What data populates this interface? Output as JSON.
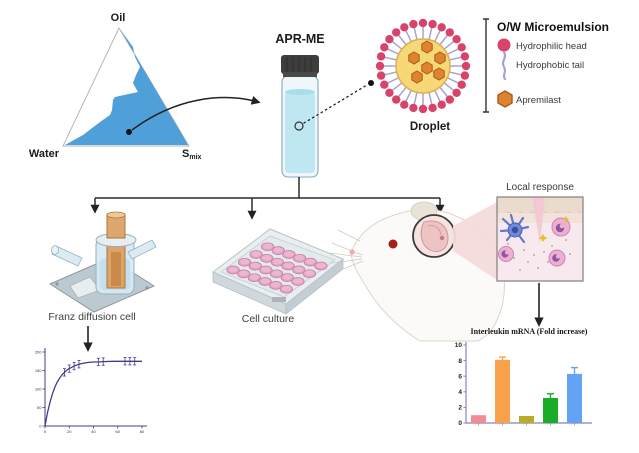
{
  "ternary": {
    "oil": "Oil",
    "water": "Water",
    "smix_base": "S",
    "smix_sub": "mix"
  },
  "vial": {
    "label": "APR-ME"
  },
  "droplet": {
    "label": "Droplet"
  },
  "legend": {
    "title": "O/W Microemulsion",
    "items": [
      {
        "icon": "hydrophilic-head-icon",
        "label": "Hydrophilic head"
      },
      {
        "icon": "hydrophobic-tail-icon",
        "label": "Hydrophobic tail"
      },
      {
        "icon": "apremilast-hexagon-icon",
        "label": "Apremilast"
      }
    ]
  },
  "assays": {
    "franz_label": "Franz diffusion cell",
    "cell_culture_label": "Cell culture",
    "local_response_label": "Local response"
  },
  "colors": {
    "ternary_region": "#4f9fd8",
    "head": "#d8436a",
    "tail": "#a3a3da",
    "apremilast": "#e0832f",
    "apremilast_stroke": "#a85c17",
    "droplet_core": "#f6d878",
    "droplet_core_stroke": "#e0ae4e",
    "vial_liquid": "#bfe7f2",
    "beam": "#f4dadb",
    "axis_purple": "#8585c2"
  },
  "chart_data": [
    {
      "type": "line",
      "title": "",
      "x": [
        0,
        2,
        4,
        6,
        8,
        10,
        12,
        14,
        16,
        18,
        20,
        24,
        28,
        32,
        36,
        40,
        44,
        48,
        56,
        64,
        72,
        80
      ],
      "y": [
        0,
        35,
        63,
        86,
        104,
        118,
        129,
        138,
        145,
        151,
        155,
        162,
        167,
        170,
        172,
        173,
        173,
        174,
        175,
        175,
        175,
        175
      ],
      "error_points": [
        [
          16,
          145
        ],
        [
          20,
          155
        ],
        [
          24,
          162
        ],
        [
          28,
          167
        ],
        [
          44,
          173
        ],
        [
          48,
          174
        ],
        [
          66,
          175
        ],
        [
          70,
          175
        ],
        [
          74,
          175
        ]
      ],
      "yerr": 10,
      "xlim": [
        0,
        80
      ],
      "ylim": [
        0,
        200
      ],
      "xticks": [
        0,
        20,
        40,
        60,
        80
      ],
      "yticks": [
        0,
        50,
        100,
        150,
        200
      ],
      "line_color": "#4a3a85",
      "grid": false,
      "legend_position": "none"
    },
    {
      "type": "bar",
      "title": "Interleukin mRNA (Fold increase)",
      "categories": [
        "",
        "",
        "",
        "",
        ""
      ],
      "values": [
        1.0,
        8.1,
        0.9,
        3.2,
        6.3
      ],
      "errors": [
        0,
        0.35,
        0,
        0.55,
        0.8
      ],
      "bar_colors": [
        "#f28b92",
        "#f9a24b",
        "#b8ac28",
        "#19ad27",
        "#62a3f5"
      ],
      "ylim": [
        0,
        10
      ],
      "yticks": [
        0,
        2,
        4,
        6,
        8,
        10
      ],
      "axis_color": "#8585c2",
      "grid": false,
      "legend_position": "none"
    }
  ]
}
